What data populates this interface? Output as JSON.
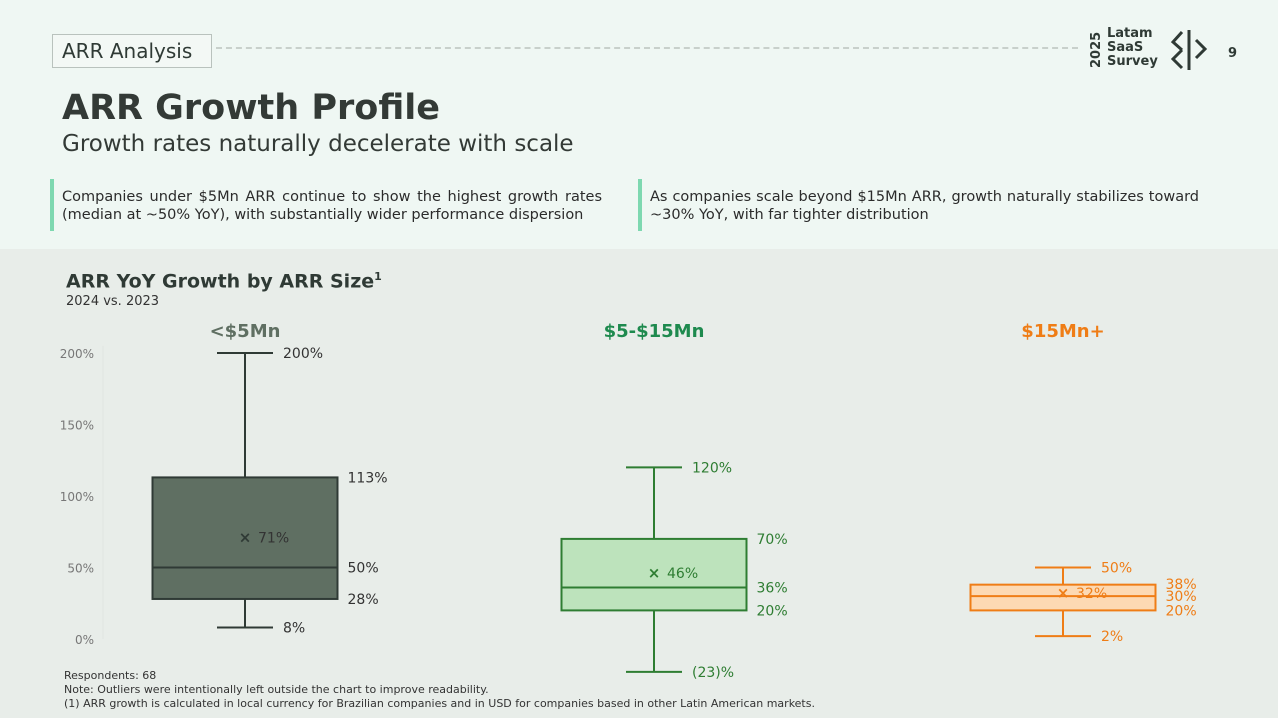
{
  "header": {
    "section": "ARR Analysis",
    "brand_year": "2025",
    "brand_lines": [
      "Latam",
      "SaaS",
      "Survey"
    ],
    "page_number": "9"
  },
  "title": "ARR Growth Profile",
  "subtitle": "Growth rates naturally decelerate with scale",
  "callouts": [
    "Companies under $5Mn ARR continue to show the highest growth rates (median at ~50% YoY), with substantially wider performance dispersion",
    "As companies scale beyond $15Mn ARR, growth naturally stabilizes toward ~30% YoY, with far tighter distribution"
  ],
  "chart_data": {
    "type": "box",
    "title": "ARR YoY Growth by ARR Size",
    "title_footnote": "1",
    "subtitle": "2024 vs. 2023",
    "ylim": [
      -25,
      205
    ],
    "y_ticks": [
      0,
      50,
      100,
      150,
      200
    ],
    "y_tick_labels": [
      "0%",
      "50%",
      "100%",
      "150%",
      "200%"
    ],
    "grid": false,
    "series": [
      {
        "name": "<$5Mn",
        "color": "#5f6f62",
        "fill": "#5f6f62",
        "stroke": "#2f3a35",
        "label_color": "#333333",
        "min": 8,
        "q1": 28,
        "median": 50,
        "q3": 113,
        "max": 200,
        "mean": 71,
        "labels": {
          "min": "8%",
          "q1": "28%",
          "median": "50%",
          "q3": "113%",
          "max": "200%",
          "mean": "71%"
        }
      },
      {
        "name": "$5-$15Mn",
        "color": "#1e8a4e",
        "fill": "#bde3bc",
        "stroke": "#2e7d32",
        "label_color": "#2e7d32",
        "min": -23,
        "q1": 20,
        "median": 36,
        "q3": 70,
        "max": 120,
        "mean": 46,
        "labels": {
          "min": "(23)%",
          "q1": "20%",
          "median": "36%",
          "q3": "70%",
          "max": "120%",
          "mean": "46%"
        }
      },
      {
        "name": "$15Mn+",
        "color": "#ef7d16",
        "fill": "#fdd9b3",
        "stroke": "#ef7d16",
        "label_color": "#ef7d16",
        "min": 2,
        "q1": 20,
        "median": 30,
        "q3": 38,
        "max": 50,
        "mean": 32,
        "labels": {
          "min": "2%",
          "q1": "20%",
          "median": "30%",
          "q3": "38%",
          "max": "50%",
          "mean": "32%"
        }
      }
    ]
  },
  "footnotes": [
    "Respondents: 68",
    "Note: Outliers were intentionally left outside the chart to improve readability.",
    "(1) ARR growth is calculated in local currency for Brazilian companies and in USD for companies based in other Latin American markets."
  ]
}
